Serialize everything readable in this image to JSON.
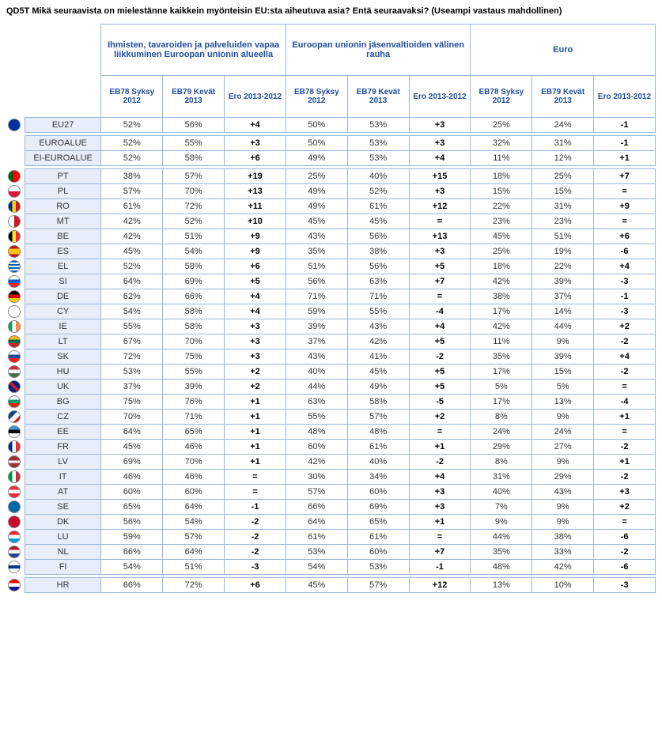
{
  "title": "QD5T Mikä seuraavista on mielestänne kaikkein myönteisin EU:sta aiheutuva asia? Entä seuraavaksi? (Useampi vastaus mahdollinen)",
  "groups": [
    "Ihmisten, tavaroiden ja palveluiden vapaa liikkuminen Euroopan unionin alueella",
    "Euroopan unionin jäsenvaltioiden välinen rauha",
    "Euro"
  ],
  "sub_headers": [
    "EB78 Syksy 2012",
    "EB79 Kevät 2013",
    "Ero 2013-2012"
  ],
  "colors": {
    "header_text": "#1f4e9c",
    "border": "#9bb7d9",
    "label_bg": "#e8eef9"
  },
  "flag_colors": {
    "EU27": "linear-gradient(#003399,#003399)",
    "EUROALUE": "",
    "EI-EUROALUE": "",
    "PT": "linear-gradient(90deg,#006600 40%,#ff0000 40%)",
    "PL": "linear-gradient(#fff 50%,#dc143c 50%)",
    "RO": "linear-gradient(90deg,#002b7f 33%,#fcd116 33%,#fcd116 66%,#ce1126 66%)",
    "MT": "linear-gradient(90deg,#fff 50%,#cf142b 50%)",
    "BE": "linear-gradient(90deg,#000 33%,#fae042 33%,#fae042 66%,#ed2939 66%)",
    "ES": "linear-gradient(#c60b1e 25%,#ffc400 25%,#ffc400 75%,#c60b1e 75%)",
    "EL": "repeating-linear-gradient(#0d5eaf,#0d5eaf 2px,#fff 2px,#fff 4px)",
    "SI": "linear-gradient(#fff 33%,#005ce5 33%,#005ce5 66%,#ed1c24 66%)",
    "DE": "linear-gradient(#000 33%,#dd0000 33%,#dd0000 66%,#ffce00 66%)",
    "CY": "linear-gradient(#fff,#fff)",
    "IE": "linear-gradient(90deg,#169b62 33%,#fff 33%,#fff 66%,#ff883e 66%)",
    "LT": "linear-gradient(#fdb913 33%,#006a44 33%,#006a44 66%,#c1272d 66%)",
    "SK": "linear-gradient(#fff 33%,#0b4ea2 33%,#0b4ea2 66%,#ee1c25 66%)",
    "HU": "linear-gradient(#cd2a3e 33%,#fff 33%,#fff 66%,#436f4d 66%)",
    "UK": "linear-gradient(45deg,#00247d 40%,#cf142b 40%,#cf142b 60%,#00247d 60%)",
    "BG": "linear-gradient(#fff 33%,#00966e 33%,#00966e 66%,#d62612 66%)",
    "CZ": "linear-gradient(135deg,#11457e 40%,#fff 40%,#fff 70%,#d7141a 70%)",
    "EE": "linear-gradient(#4891d9 33%,#000 33%,#000 66%,#fff 66%)",
    "FR": "linear-gradient(90deg,#002395 33%,#fff 33%,#fff 66%,#ed2939 66%)",
    "LV": "linear-gradient(#9e3039 40%,#fff 40%,#fff 60%,#9e3039 60%)",
    "IT": "linear-gradient(90deg,#009246 33%,#fff 33%,#fff 66%,#ce2b37 66%)",
    "AT": "linear-gradient(#ed2939 33%,#fff 33%,#fff 66%,#ed2939 66%)",
    "SE": "linear-gradient(#006aa7,#006aa7)",
    "DK": "linear-gradient(#c60c30,#c60c30)",
    "LU": "linear-gradient(#ed2939 33%,#fff 33%,#fff 66%,#00a1de 66%)",
    "NL": "linear-gradient(#ae1c28 33%,#fff 33%,#fff 66%,#21468b 66%)",
    "FI": "linear-gradient(#fff 35%,#003580 35%,#003580 65%,#fff 65%)",
    "HR": "linear-gradient(#ff0000 33%,#fff 33%,#fff 66%,#171796 66%)"
  },
  "sections": [
    {
      "rows": [
        {
          "code": "EU27",
          "flag": true,
          "v": [
            "52%",
            "56%",
            "+4",
            "50%",
            "53%",
            "+3",
            "25%",
            "24%",
            "-1"
          ]
        }
      ]
    },
    {
      "rows": [
        {
          "code": "EUROALUE",
          "flag": false,
          "v": [
            "52%",
            "55%",
            "+3",
            "50%",
            "53%",
            "+3",
            "32%",
            "31%",
            "-1"
          ]
        },
        {
          "code": "EI-EUROALUE",
          "flag": false,
          "v": [
            "52%",
            "58%",
            "+6",
            "49%",
            "53%",
            "+4",
            "11%",
            "12%",
            "+1"
          ]
        }
      ]
    },
    {
      "rows": [
        {
          "code": "PT",
          "flag": true,
          "v": [
            "38%",
            "57%",
            "+19",
            "25%",
            "40%",
            "+15",
            "18%",
            "25%",
            "+7"
          ]
        },
        {
          "code": "PL",
          "flag": true,
          "v": [
            "57%",
            "70%",
            "+13",
            "49%",
            "52%",
            "+3",
            "15%",
            "15%",
            "="
          ]
        },
        {
          "code": "RO",
          "flag": true,
          "v": [
            "61%",
            "72%",
            "+11",
            "49%",
            "61%",
            "+12",
            "22%",
            "31%",
            "+9"
          ]
        },
        {
          "code": "MT",
          "flag": true,
          "v": [
            "42%",
            "52%",
            "+10",
            "45%",
            "45%",
            "=",
            "23%",
            "23%",
            "="
          ]
        },
        {
          "code": "BE",
          "flag": true,
          "v": [
            "42%",
            "51%",
            "+9",
            "43%",
            "56%",
            "+13",
            "45%",
            "51%",
            "+6"
          ]
        },
        {
          "code": "ES",
          "flag": true,
          "v": [
            "45%",
            "54%",
            "+9",
            "35%",
            "38%",
            "+3",
            "25%",
            "19%",
            "-6"
          ]
        },
        {
          "code": "EL",
          "flag": true,
          "v": [
            "52%",
            "58%",
            "+6",
            "51%",
            "56%",
            "+5",
            "18%",
            "22%",
            "+4"
          ]
        },
        {
          "code": "SI",
          "flag": true,
          "v": [
            "64%",
            "69%",
            "+5",
            "56%",
            "63%",
            "+7",
            "42%",
            "39%",
            "-3"
          ]
        },
        {
          "code": "DE",
          "flag": true,
          "v": [
            "62%",
            "66%",
            "+4",
            "71%",
            "71%",
            "=",
            "38%",
            "37%",
            "-1"
          ]
        },
        {
          "code": "CY",
          "flag": true,
          "v": [
            "54%",
            "58%",
            "+4",
            "59%",
            "55%",
            "-4",
            "17%",
            "14%",
            "-3"
          ]
        },
        {
          "code": "IE",
          "flag": true,
          "v": [
            "55%",
            "58%",
            "+3",
            "39%",
            "43%",
            "+4",
            "42%",
            "44%",
            "+2"
          ]
        },
        {
          "code": "LT",
          "flag": true,
          "v": [
            "67%",
            "70%",
            "+3",
            "37%",
            "42%",
            "+5",
            "11%",
            "9%",
            "-2"
          ]
        },
        {
          "code": "SK",
          "flag": true,
          "v": [
            "72%",
            "75%",
            "+3",
            "43%",
            "41%",
            "-2",
            "35%",
            "39%",
            "+4"
          ]
        },
        {
          "code": "HU",
          "flag": true,
          "v": [
            "53%",
            "55%",
            "+2",
            "40%",
            "45%",
            "+5",
            "17%",
            "15%",
            "-2"
          ]
        },
        {
          "code": "UK",
          "flag": true,
          "v": [
            "37%",
            "39%",
            "+2",
            "44%",
            "49%",
            "+5",
            "5%",
            "5%",
            "="
          ]
        },
        {
          "code": "BG",
          "flag": true,
          "v": [
            "75%",
            "76%",
            "+1",
            "63%",
            "58%",
            "-5",
            "17%",
            "13%",
            "-4"
          ]
        },
        {
          "code": "CZ",
          "flag": true,
          "v": [
            "70%",
            "71%",
            "+1",
            "55%",
            "57%",
            "+2",
            "8%",
            "9%",
            "+1"
          ]
        },
        {
          "code": "EE",
          "flag": true,
          "v": [
            "64%",
            "65%",
            "+1",
            "48%",
            "48%",
            "=",
            "24%",
            "24%",
            "="
          ]
        },
        {
          "code": "FR",
          "flag": true,
          "v": [
            "45%",
            "46%",
            "+1",
            "60%",
            "61%",
            "+1",
            "29%",
            "27%",
            "-2"
          ]
        },
        {
          "code": "LV",
          "flag": true,
          "v": [
            "69%",
            "70%",
            "+1",
            "42%",
            "40%",
            "-2",
            "8%",
            "9%",
            "+1"
          ]
        },
        {
          "code": "IT",
          "flag": true,
          "v": [
            "46%",
            "46%",
            "=",
            "30%",
            "34%",
            "+4",
            "31%",
            "29%",
            "-2"
          ]
        },
        {
          "code": "AT",
          "flag": true,
          "v": [
            "60%",
            "60%",
            "=",
            "57%",
            "60%",
            "+3",
            "40%",
            "43%",
            "+3"
          ]
        },
        {
          "code": "SE",
          "flag": true,
          "v": [
            "65%",
            "64%",
            "-1",
            "66%",
            "69%",
            "+3",
            "7%",
            "9%",
            "+2"
          ]
        },
        {
          "code": "DK",
          "flag": true,
          "v": [
            "56%",
            "54%",
            "-2",
            "64%",
            "65%",
            "+1",
            "9%",
            "9%",
            "="
          ]
        },
        {
          "code": "LU",
          "flag": true,
          "v": [
            "59%",
            "57%",
            "-2",
            "61%",
            "61%",
            "=",
            "44%",
            "38%",
            "-6"
          ]
        },
        {
          "code": "NL",
          "flag": true,
          "v": [
            "66%",
            "64%",
            "-2",
            "53%",
            "60%",
            "+7",
            "35%",
            "33%",
            "-2"
          ]
        },
        {
          "code": "FI",
          "flag": true,
          "v": [
            "54%",
            "51%",
            "-3",
            "54%",
            "53%",
            "-1",
            "48%",
            "42%",
            "-6"
          ]
        }
      ]
    },
    {
      "rows": [
        {
          "code": "HR",
          "flag": true,
          "v": [
            "66%",
            "72%",
            "+6",
            "45%",
            "57%",
            "+12",
            "13%",
            "10%",
            "-3"
          ]
        }
      ]
    }
  ]
}
